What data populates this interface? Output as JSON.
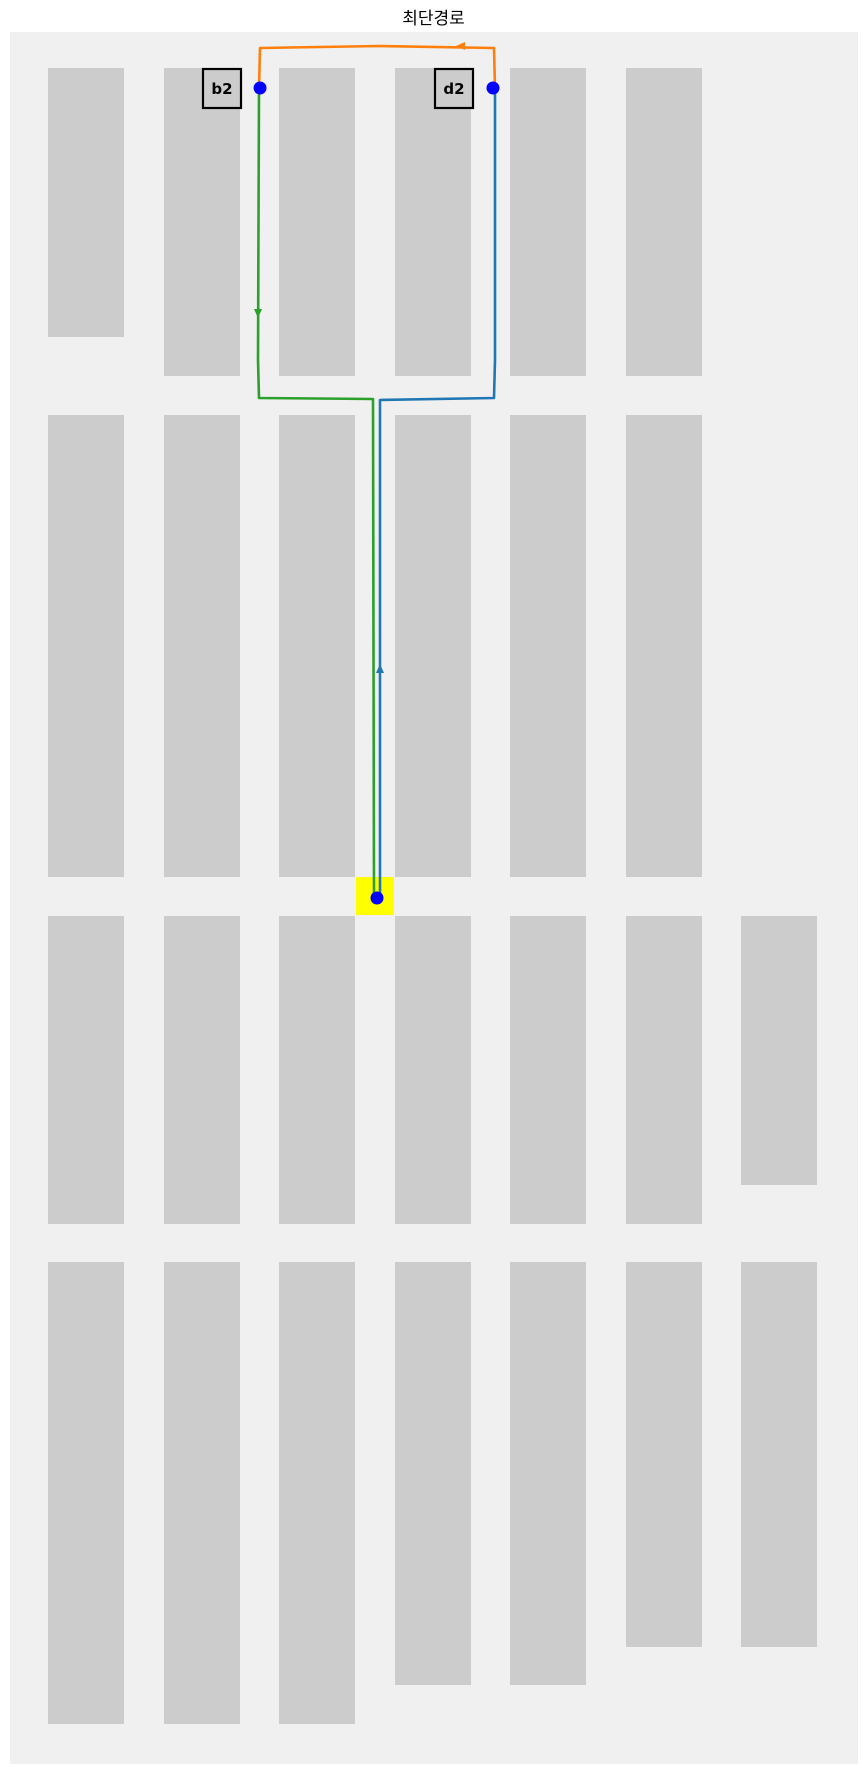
{
  "title": "최단경로",
  "colors": {
    "background": "#f0f0f0",
    "shelf": "#cccccc",
    "start_cell": "#ffff00",
    "node": "#0000ff",
    "label_fill": "#cccccc",
    "label_border": "#000000"
  },
  "targets": [
    {
      "label": "b2"
    },
    {
      "label": "d2"
    }
  ],
  "routes": [
    {
      "from": "start",
      "to": "d2",
      "color": "#1f77b4"
    },
    {
      "from": "d2",
      "to": "b2",
      "color": "#ff7f0e"
    },
    {
      "from": "b2",
      "to": "start",
      "color": "#2ca02c"
    }
  ]
}
